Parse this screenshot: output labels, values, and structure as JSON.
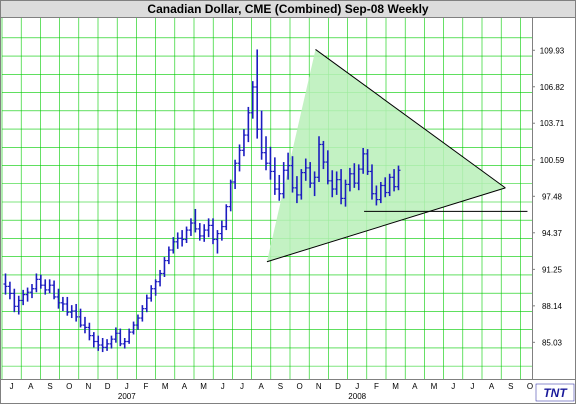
{
  "chart_data": {
    "type": "bar",
    "subtype": "ohlc-price-bars",
    "title": "Canadian Dollar, CME (Combined) Sep-08  Weekly",
    "ylabel": "",
    "xlabel": "",
    "ylim": [
      82.5,
      112.0
    ],
    "y_ticks": [
      {
        "value": 85.03,
        "label": "85.03"
      },
      {
        "value": 88.14,
        "label": "88.14"
      },
      {
        "value": 91.25,
        "label": "91.25"
      },
      {
        "value": 94.37,
        "label": "94.37"
      },
      {
        "value": 97.48,
        "label": "97.48"
      },
      {
        "value": 100.59,
        "label": "100.59"
      },
      {
        "value": 103.71,
        "label": "103.71"
      },
      {
        "value": 106.82,
        "label": "106.82"
      },
      {
        "value": 109.93,
        "label": "109.93"
      }
    ],
    "x_start": "2006-06-26",
    "x_months": [
      "J",
      "A",
      "S",
      "O",
      "N",
      "D",
      "J",
      "F",
      "M",
      "A",
      "M",
      "J",
      "J",
      "A",
      "S",
      "O",
      "N",
      "D",
      "J",
      "F",
      "M",
      "A",
      "M",
      "J",
      "J",
      "A",
      "S",
      "O"
    ],
    "x_years": [
      {
        "label": "2007",
        "month_index": 6
      },
      {
        "label": "2008",
        "month_index": 18
      }
    ],
    "grid": true,
    "colors": {
      "bars": "#1c1cc0",
      "grid": "#00cc00",
      "triangle_fill": "#b9f0b9",
      "lines": "#000000",
      "frame": "#808080"
    },
    "series": [
      {
        "values": [
          [
            90.0,
            90.9,
            89.1,
            89.8
          ],
          [
            89.8,
            90.2,
            88.7,
            89.2
          ],
          [
            89.2,
            89.6,
            87.6,
            88.1
          ],
          [
            88.1,
            89.0,
            87.4,
            88.6
          ],
          [
            88.6,
            89.5,
            88.2,
            89.1
          ],
          [
            89.1,
            89.7,
            88.5,
            89.3
          ],
          [
            89.3,
            90.0,
            88.8,
            89.6
          ],
          [
            89.6,
            90.9,
            89.3,
            90.4
          ],
          [
            90.4,
            90.8,
            89.6,
            89.9
          ],
          [
            89.9,
            90.4,
            89.1,
            89.5
          ],
          [
            89.5,
            90.4,
            89.2,
            89.9
          ],
          [
            89.9,
            90.3,
            88.7,
            88.9
          ],
          [
            88.9,
            89.6,
            87.9,
            88.4
          ],
          [
            88.4,
            88.9,
            87.7,
            88.3
          ],
          [
            88.3,
            88.9,
            87.3,
            87.6
          ],
          [
            87.6,
            88.2,
            87.1,
            87.7
          ],
          [
            87.7,
            88.3,
            86.8,
            87.2
          ],
          [
            87.2,
            87.9,
            86.3,
            86.5
          ],
          [
            86.5,
            87.2,
            85.8,
            86.3
          ],
          [
            86.3,
            86.7,
            85.2,
            85.6
          ],
          [
            85.6,
            85.9,
            84.6,
            85.1
          ],
          [
            85.1,
            85.6,
            84.3,
            84.8
          ],
          [
            84.8,
            85.4,
            84.2,
            84.6
          ],
          [
            84.6,
            85.3,
            84.3,
            84.9
          ],
          [
            84.9,
            85.6,
            84.5,
            85.3
          ],
          [
            85.3,
            86.3,
            85.0,
            85.8
          ],
          [
            85.8,
            86.2,
            84.7,
            84.9
          ],
          [
            84.9,
            85.4,
            84.5,
            85.1
          ],
          [
            85.1,
            86.2,
            84.9,
            85.9
          ],
          [
            85.9,
            86.8,
            85.7,
            86.5
          ],
          [
            86.5,
            87.4,
            86.1,
            87.1
          ],
          [
            87.1,
            88.2,
            86.8,
            87.9
          ],
          [
            87.9,
            89.1,
            87.6,
            88.8
          ],
          [
            88.8,
            89.9,
            88.5,
            89.6
          ],
          [
            89.6,
            90.4,
            89.0,
            90.2
          ],
          [
            90.2,
            91.2,
            89.8,
            90.9
          ],
          [
            90.9,
            92.3,
            90.6,
            92.0
          ],
          [
            92.0,
            93.2,
            91.7,
            92.9
          ],
          [
            92.9,
            94.0,
            92.6,
            93.6
          ],
          [
            93.6,
            94.4,
            93.0,
            93.9
          ],
          [
            93.9,
            94.6,
            93.2,
            93.8
          ],
          [
            93.8,
            94.9,
            93.5,
            94.6
          ],
          [
            94.6,
            95.6,
            94.1,
            95.2
          ],
          [
            95.2,
            96.4,
            94.4,
            94.7
          ],
          [
            94.7,
            95.2,
            93.7,
            94.1
          ],
          [
            94.1,
            95.1,
            93.6,
            94.6
          ],
          [
            94.6,
            95.6,
            94.0,
            95.0
          ],
          [
            95.0,
            95.6,
            93.4,
            93.8
          ],
          [
            93.8,
            94.6,
            92.6,
            94.3
          ],
          [
            94.3,
            95.4,
            93.7,
            94.9
          ],
          [
            94.9,
            96.8,
            94.6,
            96.6
          ],
          [
            96.6,
            98.9,
            96.2,
            98.7
          ],
          [
            98.7,
            100.6,
            98.1,
            100.3
          ],
          [
            100.3,
            101.9,
            99.6,
            101.4
          ],
          [
            101.4,
            103.2,
            100.9,
            102.7
          ],
          [
            102.7,
            105.1,
            102.1,
            104.6
          ],
          [
            104.6,
            107.3,
            104.1,
            106.8
          ],
          [
            106.8,
            110.0,
            102.4,
            103.2
          ],
          [
            103.2,
            104.8,
            100.6,
            101.2
          ],
          [
            101.2,
            102.6,
            99.7,
            100.3
          ],
          [
            100.3,
            101.7,
            98.9,
            99.6
          ],
          [
            99.6,
            100.8,
            97.6,
            98.1
          ],
          [
            98.1,
            99.3,
            97.1,
            97.7
          ],
          [
            97.7,
            100.4,
            97.3,
            99.7
          ],
          [
            99.7,
            101.2,
            98.9,
            100.1
          ],
          [
            100.1,
            100.9,
            97.8,
            98.2
          ],
          [
            98.2,
            99.2,
            96.9,
            97.6
          ],
          [
            97.6,
            99.8,
            97.2,
            99.5
          ],
          [
            99.5,
            100.7,
            98.8,
            99.9
          ],
          [
            99.9,
            100.4,
            98.2,
            98.6
          ],
          [
            98.6,
            99.6,
            97.5,
            99.1
          ],
          [
            99.1,
            102.6,
            98.7,
            101.9
          ],
          [
            101.9,
            102.2,
            99.8,
            100.4
          ],
          [
            100.4,
            101.4,
            98.5,
            98.8
          ],
          [
            98.8,
            99.7,
            97.4,
            98.1
          ],
          [
            98.1,
            99.6,
            97.6,
            98.9
          ],
          [
            98.9,
            99.8,
            96.8,
            97.3
          ],
          [
            97.3,
            98.9,
            96.6,
            98.5
          ],
          [
            98.5,
            99.9,
            97.9,
            99.4
          ],
          [
            99.4,
            100.3,
            98.2,
            98.6
          ],
          [
            98.6,
            100.2,
            98.0,
            99.8
          ],
          [
            99.8,
            101.6,
            99.4,
            101.1
          ],
          [
            101.1,
            101.5,
            99.3,
            99.6
          ],
          [
            99.6,
            100.2,
            97.2,
            97.7
          ],
          [
            97.7,
            98.4,
            96.7,
            97.2
          ],
          [
            97.2,
            98.7,
            96.9,
            98.4
          ],
          [
            98.4,
            99.1,
            97.4,
            97.8
          ],
          [
            97.8,
            99.4,
            97.5,
            99.1
          ],
          [
            99.1,
            99.8,
            97.9,
            98.3
          ],
          [
            98.3,
            100.1,
            98.0,
            99.7
          ]
        ]
      }
    ],
    "annotations": {
      "triangle_apex_high": [
        "2007-11-05",
        110.0
      ],
      "triangle_apex_low": [
        "2007-08-20",
        91.9
      ],
      "triangle_apex_right": [
        "2008-09-01",
        98.2
      ],
      "support_line_level": 96.2,
      "support_line_from": "2008-01-21",
      "support_line_to": "2008-10-06"
    }
  },
  "branding": {
    "logo": "TNT"
  }
}
